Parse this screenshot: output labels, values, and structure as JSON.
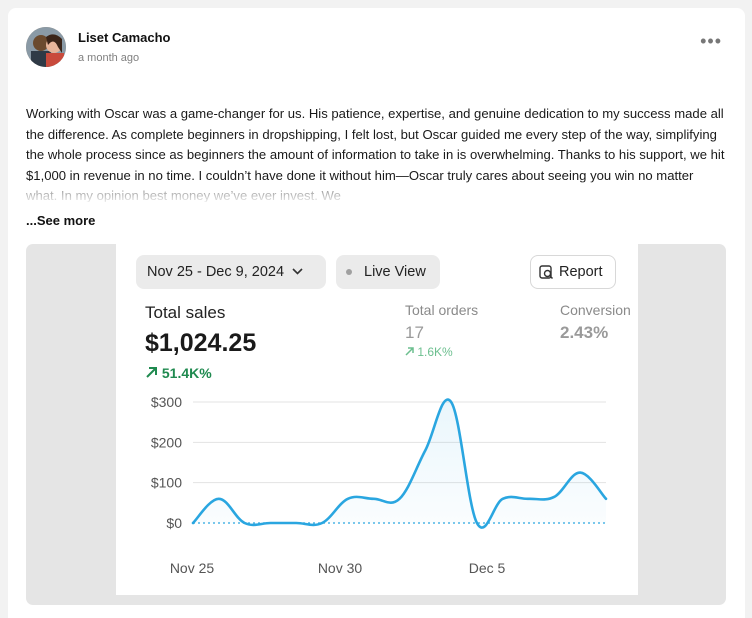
{
  "post": {
    "author": "Liset Camacho",
    "time": "a month ago",
    "menu_icon": "more-horizontal-icon",
    "body": "Working with Oscar was a game-changer for us. His patience, expertise, and genuine dedication to my success made all the difference. As complete beginners in dropshipping, I felt lost, but Oscar guided me every step of the way, simplifying the whole process since as beginners the amount of information to take in is overwhelming. Thanks to his support, we hit $1,000 in revenue in no time. I couldn’t have done it without him—Oscar truly cares about seeing you win no matter what. In my opinion best money we’ve ever invest. We",
    "see_more": "...See more"
  },
  "dashboard": {
    "date_range": "Nov 25 - Dec 9, 2024",
    "live_view": "Live View",
    "report": "Report",
    "metrics": {
      "total_sales": {
        "label": "Total sales",
        "value": "$1,024.25",
        "change": "51.4K%"
      },
      "total_orders": {
        "label": "Total orders",
        "value": "17",
        "change": "1.6K%"
      },
      "conversion": {
        "label": "Conversion",
        "value": "2.43%"
      }
    },
    "accent_color": "#2aa6e0",
    "positive_color": "#1f8a4f"
  },
  "chart_data": {
    "type": "line",
    "x_labels": [
      "Nov 25",
      "Nov 30",
      "Dec 5"
    ],
    "y_ticks": [
      "$300",
      "$200",
      "$100",
      "$0"
    ],
    "ylim": [
      0,
      300
    ],
    "grid": true,
    "series": [
      {
        "values": [
          0,
          60,
          0,
          0,
          0,
          0,
          60,
          60,
          60,
          180,
          300,
          0,
          60,
          60,
          65,
          125,
          60
        ]
      }
    ],
    "comparison_baseline": 0
  }
}
